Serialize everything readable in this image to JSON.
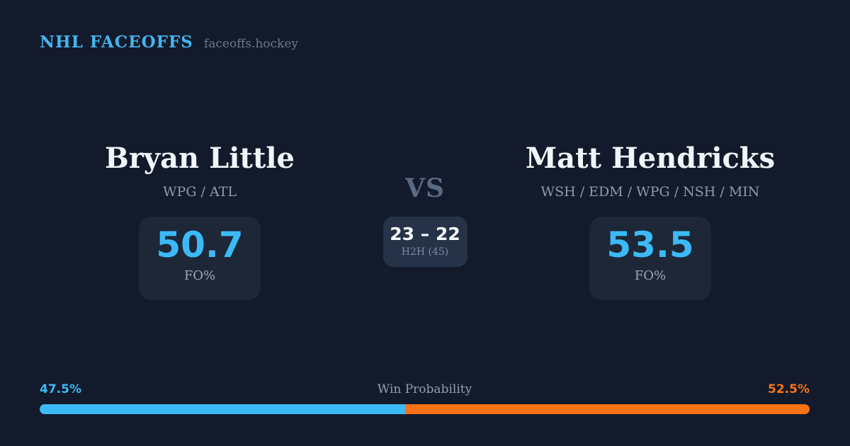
{
  "header": {
    "brand": "NHL FACEOFFS",
    "site": "faceoffs.hockey"
  },
  "players": {
    "left": {
      "name": "Bryan Little",
      "teams": "WPG / ATL",
      "fo_value": "50.7",
      "fo_label": "FO%"
    },
    "right": {
      "name": "Matt Hendricks",
      "teams": "WSH / EDM / WPG / NSH / MIN",
      "fo_value": "53.5",
      "fo_label": "FO%"
    }
  },
  "center": {
    "vs_label": "VS",
    "h2h_score": "23 – 22",
    "h2h_label": "H2H (45)"
  },
  "win_probability": {
    "label": "Win Probability",
    "left_pct_text": "47.5%",
    "right_pct_text": "52.5%",
    "left_value": 47.5,
    "right_value": 52.5,
    "left_width_style": "width:47.5%"
  },
  "colors": {
    "background": "#121a2b",
    "stat_card": "#1d2737",
    "h2h_card": "#263247",
    "accent_blue": "#3cbaf7",
    "accent_orange": "#f97316",
    "brand_blue": "#45b4ee",
    "text_primary": "#f2f5f9",
    "text_muted": "#8e9ab0"
  }
}
